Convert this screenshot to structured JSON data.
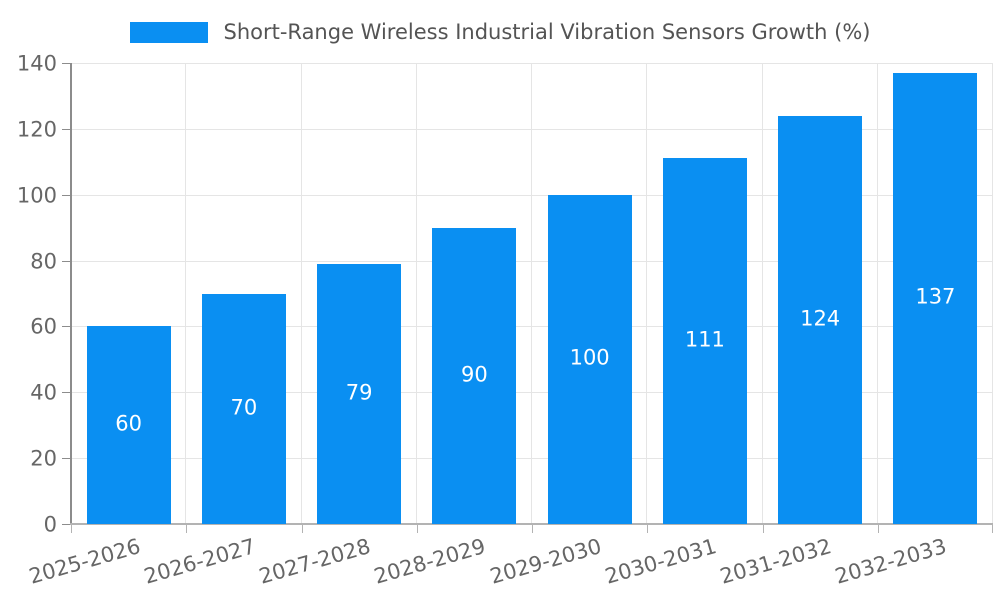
{
  "chart_data": {
    "type": "bar",
    "title": "Short-Range Wireless Industrial Vibration Sensors Growth (%)",
    "categories": [
      "2025-2026",
      "2026-2027",
      "2027-2028",
      "2028-2029",
      "2029-2030",
      "2030-2031",
      "2031-2032",
      "2032-2033"
    ],
    "values": [
      60,
      70,
      79,
      90,
      100,
      111,
      124,
      137
    ],
    "xlabel": "",
    "ylabel": "",
    "ylim": [
      0,
      140
    ],
    "yticks": [
      0,
      20,
      40,
      60,
      80,
      100,
      120,
      140
    ],
    "grid": true,
    "legend_position": "top-center",
    "value_labels": "inside-center",
    "colors": {
      "bar": "#0a8ff2",
      "bar_value_label": "#ffffff",
      "gridline": "#e5e5e5",
      "y_spine": "#8c8c8c",
      "x_spine": "#b3b3b3",
      "tick_text": "#666666",
      "legend_text": "#545454"
    }
  }
}
